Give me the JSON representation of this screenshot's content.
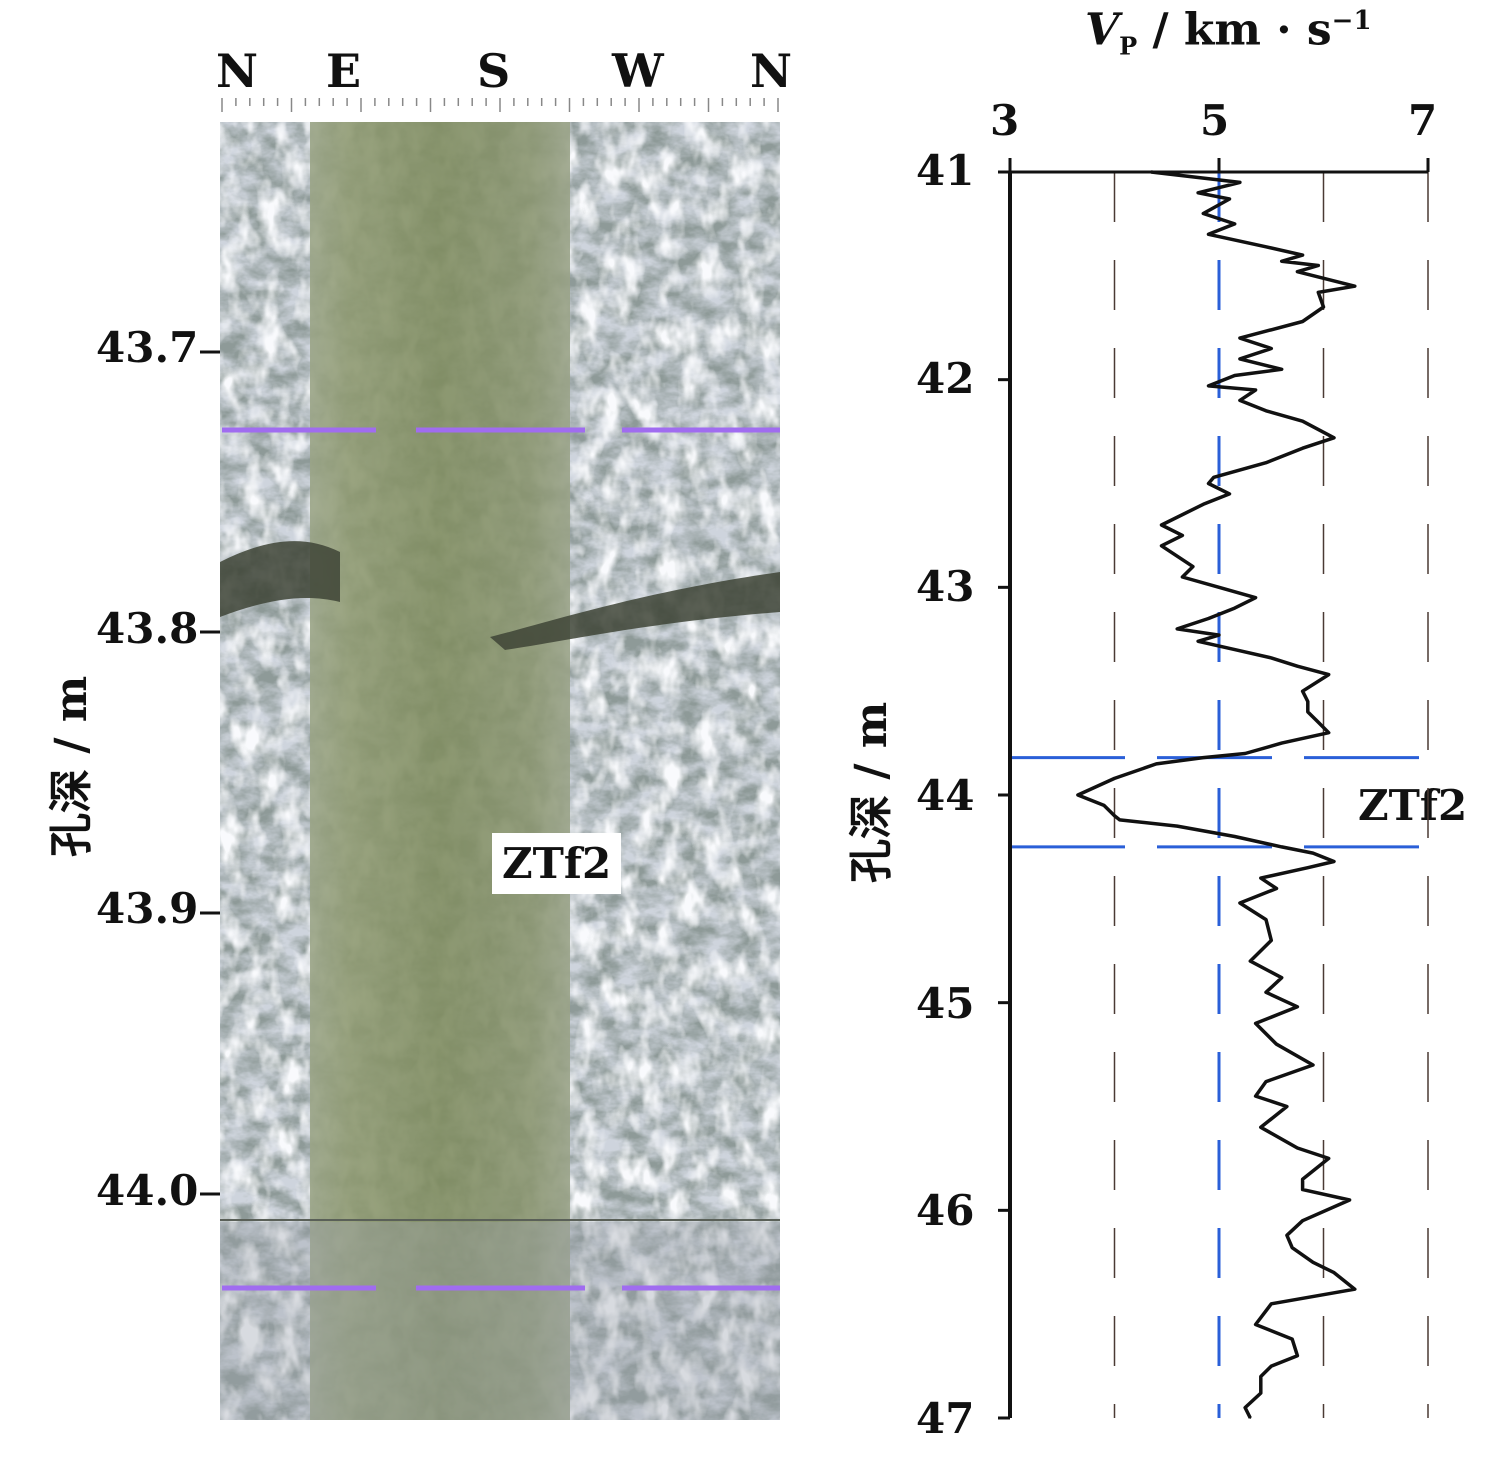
{
  "core_image": {
    "compass_labels": [
      "N",
      "E",
      "S",
      "W",
      "N"
    ],
    "depth_ticks": [
      "43.7",
      "43.8",
      "43.9",
      "44.0"
    ],
    "ylabel": "孔深 / m",
    "annotation": "ZTf2"
  },
  "chart_data": {
    "type": "line",
    "title": "",
    "xlabel_symbol": "V",
    "xlabel_sub": "P",
    "xlabel_units": " / km · s",
    "xlabel_sup": "−1",
    "xlim": [
      3,
      7
    ],
    "xticks": [
      "3",
      "5",
      "7"
    ],
    "ylabel": "孔深 / m",
    "ylim": [
      41,
      47
    ],
    "yticks": [
      "41",
      "42",
      "43",
      "44",
      "45",
      "46",
      "47"
    ],
    "reference_velocity": 5,
    "fracture_zone": {
      "label": "ZTf2",
      "depth_top": 43.82,
      "depth_bottom": 44.25
    },
    "series": [
      {
        "y": [
          41.0,
          41.05,
          41.1,
          41.13,
          41.2,
          41.25,
          41.3,
          41.36,
          41.4,
          41.43,
          41.45,
          41.48,
          41.55,
          41.58,
          41.65,
          41.72,
          41.8,
          41.85,
          41.9,
          41.95,
          41.98,
          42.03,
          42.05,
          42.1,
          42.15,
          42.2,
          42.28,
          42.33,
          42.4,
          42.47,
          42.5,
          42.55,
          42.6,
          42.7,
          42.75,
          42.8,
          42.85,
          42.9,
          42.95,
          43.0,
          43.05,
          43.1,
          43.15,
          43.2,
          43.23,
          43.26,
          43.3,
          43.34,
          43.38,
          43.42,
          43.5,
          43.55,
          43.6,
          43.65,
          43.7,
          43.75,
          43.8,
          43.82,
          43.85,
          43.92,
          44.0,
          44.05,
          44.1,
          44.12,
          44.15,
          44.2,
          44.25,
          44.28,
          44.32,
          44.35,
          44.4,
          44.45,
          44.52,
          44.6,
          44.7,
          44.8,
          44.88,
          44.95,
          45.02,
          45.1,
          45.2,
          45.3,
          45.38,
          45.45,
          45.5,
          45.6,
          45.7,
          45.75,
          45.85,
          45.9,
          45.95,
          46.05,
          46.12,
          46.18,
          46.25,
          46.3,
          46.38,
          46.45,
          46.55,
          46.62,
          46.7,
          46.75,
          46.8,
          46.88,
          46.95,
          47.0
        ],
        "x": [
          4.35,
          5.2,
          4.8,
          5.1,
          4.85,
          5.15,
          4.9,
          5.45,
          5.8,
          5.6,
          5.95,
          5.75,
          6.3,
          5.95,
          6.0,
          5.8,
          5.2,
          5.5,
          5.2,
          5.6,
          5.15,
          4.9,
          5.35,
          5.2,
          5.45,
          5.8,
          6.1,
          5.8,
          5.45,
          4.95,
          4.9,
          5.1,
          4.85,
          4.45,
          4.65,
          4.45,
          4.6,
          4.75,
          4.65,
          5.0,
          5.35,
          5.15,
          4.9,
          4.6,
          5.0,
          4.8,
          5.15,
          5.5,
          5.75,
          6.05,
          5.8,
          5.85,
          5.85,
          5.95,
          6.05,
          5.6,
          5.25,
          4.85,
          4.4,
          4.0,
          3.65,
          3.9,
          4.0,
          4.05,
          4.6,
          5.15,
          5.6,
          5.9,
          6.1,
          5.85,
          5.4,
          5.55,
          5.2,
          5.45,
          5.5,
          5.3,
          5.6,
          5.45,
          5.75,
          5.35,
          5.55,
          5.9,
          5.45,
          5.35,
          5.65,
          5.4,
          5.75,
          6.05,
          5.8,
          5.8,
          6.25,
          5.8,
          5.65,
          5.7,
          5.9,
          6.1,
          6.3,
          5.5,
          5.35,
          5.7,
          5.75,
          5.5,
          5.4,
          5.4,
          5.25,
          5.3
        ]
      }
    ]
  }
}
